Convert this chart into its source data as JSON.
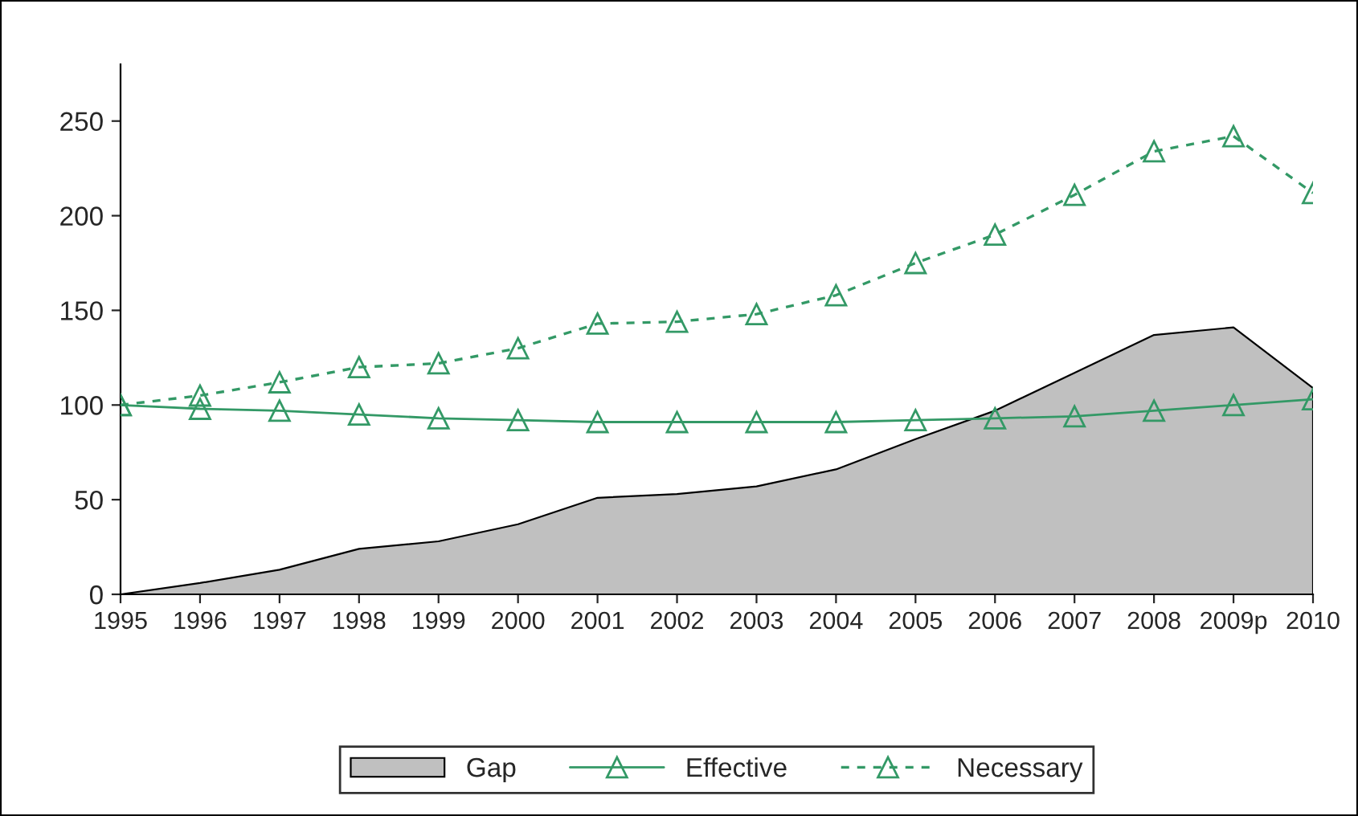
{
  "chart_data": {
    "type": "line",
    "categories": [
      "1995",
      "1996",
      "1997",
      "1998",
      "1999",
      "2000",
      "2001",
      "2002",
      "2003",
      "2004",
      "2005",
      "2006",
      "2007",
      "2008",
      "2009p",
      "2010"
    ],
    "series": [
      {
        "name": "Gap",
        "type": "area",
        "color": "#c0c0c0",
        "values": [
          0,
          6,
          13,
          24,
          28,
          37,
          51,
          53,
          57,
          66,
          82,
          97,
          117,
          137,
          141,
          109
        ]
      },
      {
        "name": "Effective",
        "color": "#339966",
        "marker": "triangle",
        "line_style": "solid",
        "values": [
          100,
          98,
          97,
          95,
          93,
          92,
          91,
          91,
          91,
          91,
          92,
          93,
          94,
          97,
          100,
          103
        ]
      },
      {
        "name": "Necessary",
        "color": "#339966",
        "marker": "triangle",
        "line_style": "dashed",
        "values": [
          100,
          105,
          112,
          120,
          122,
          130,
          143,
          144,
          148,
          158,
          175,
          190,
          211,
          234,
          242,
          212
        ]
      }
    ],
    "ylim": [
      0,
      280
    ],
    "yticks": [
      0,
      50,
      100,
      150,
      200,
      250
    ],
    "grid": false,
    "legend": "bottom"
  }
}
